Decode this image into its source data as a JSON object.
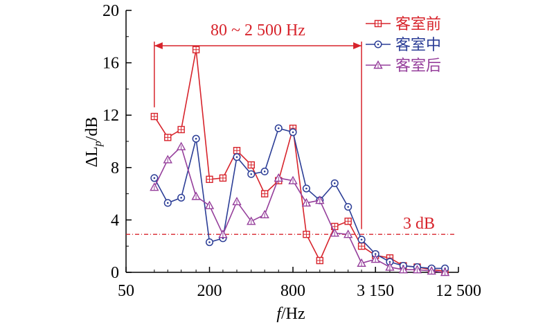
{
  "chart_data": {
    "type": "line",
    "xlabel_italic": "f",
    "xlabel_rest": "/Hz",
    "ylabel_main": "ΔL",
    "ylabel_sub": "p",
    "ylabel_rest": "/dB",
    "ylim": [
      0,
      20
    ],
    "yticks": [
      0,
      4,
      8,
      12,
      16,
      20
    ],
    "xscale": "log",
    "xlim": [
      50,
      12500
    ],
    "xticks": [
      {
        "value": 50,
        "label": "50"
      },
      {
        "value": 200,
        "label": "200"
      },
      {
        "value": 800,
        "label": "800"
      },
      {
        "value": 3150,
        "label": "3 150"
      },
      {
        "value": 12500,
        "label": "12 500"
      }
    ],
    "x": [
      80,
      100,
      125,
      160,
      200,
      250,
      315,
      400,
      500,
      630,
      800,
      1000,
      1250,
      1600,
      2000,
      2500,
      3150,
      4000,
      5000,
      6300,
      8000,
      10000
    ],
    "series": [
      {
        "name": "客室前",
        "color": "#d7232b",
        "marker": "square",
        "values": [
          11.9,
          10.3,
          10.9,
          17.0,
          7.1,
          7.2,
          9.3,
          8.2,
          6.0,
          7.0,
          11.0,
          2.9,
          0.9,
          3.5,
          3.9,
          2.0,
          1.3,
          1.1,
          0.5,
          0.4,
          0.2,
          0.1
        ]
      },
      {
        "name": "客室中",
        "color": "#2b3d96",
        "marker": "circle",
        "values": [
          7.2,
          5.3,
          5.7,
          10.2,
          2.3,
          2.6,
          8.8,
          7.5,
          7.7,
          11.0,
          10.7,
          6.4,
          5.5,
          6.8,
          5.0,
          2.5,
          1.4,
          0.8,
          0.5,
          0.4,
          0.3,
          0.3
        ]
      },
      {
        "name": "客室后",
        "color": "#953e9b",
        "marker": "triangle",
        "values": [
          6.5,
          8.6,
          9.6,
          5.8,
          5.1,
          2.9,
          5.4,
          3.9,
          4.4,
          7.2,
          7.0,
          5.3,
          5.5,
          3.0,
          2.9,
          0.7,
          1.0,
          0.4,
          0.2,
          0.2,
          0.1,
          0.0
        ]
      }
    ],
    "annotations": [
      {
        "type": "range",
        "text": "80 ~ 2 500 Hz",
        "x_from": 80,
        "x_to": 2500,
        "y": 17.3,
        "color": "#d7232b"
      },
      {
        "type": "hline",
        "text": "3 dB",
        "y": 2.9,
        "color": "#d7232b"
      }
    ],
    "legend": "top-right",
    "grid": false
  }
}
